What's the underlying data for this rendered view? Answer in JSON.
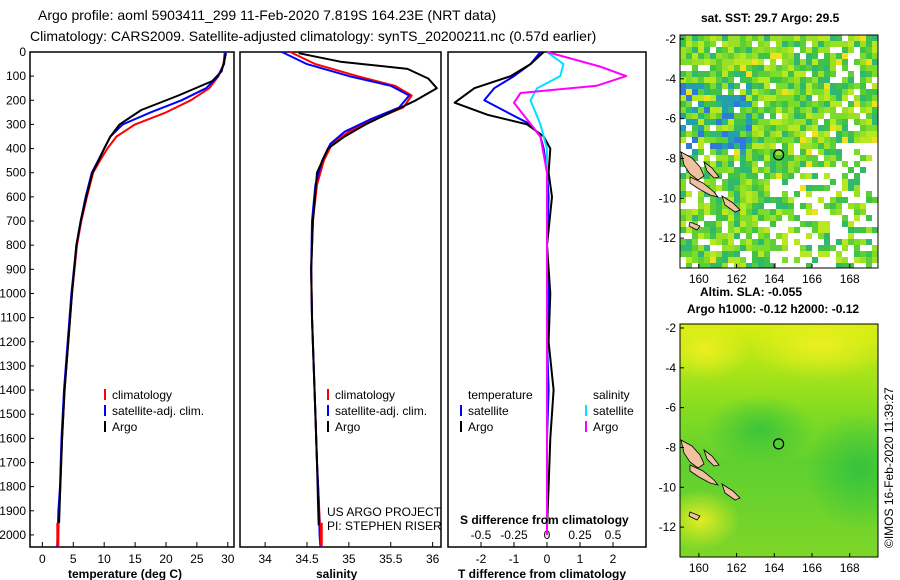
{
  "header": {
    "line1": "Argo profile: aoml 5903411_299 11-Feb-2020 7.819S 164.23E (NRT data)",
    "line2": "Climatology: CARS2009. Satellite-adjusted climatology: synTS_20200211.nc (0.57d earlier)"
  },
  "colors": {
    "climatology": "#ff0000",
    "satellite": "#0000ff",
    "argo": "#000000",
    "sat_salinity": "#00e0ff",
    "argo_salinity": "#ff00ff"
  },
  "chart_data": [
    {
      "type": "line",
      "panel": "temperature",
      "xlabel": "temperature (deg C)",
      "ylabel": "",
      "xlim": [
        -2,
        31
      ],
      "ylim": [
        2050,
        0
      ],
      "xticks": [
        0,
        5,
        10,
        15,
        20,
        25,
        30
      ],
      "yticks": [
        0,
        100,
        200,
        300,
        400,
        500,
        600,
        700,
        800,
        900,
        1000,
        1100,
        1200,
        1300,
        1400,
        1500,
        1600,
        1700,
        1800,
        1900,
        2000
      ],
      "legend": [
        "climatology",
        "satellite-adj. clim.",
        "Argo"
      ],
      "series": [
        {
          "name": "climatology",
          "color": "#ff0000",
          "x": [
            29.5,
            29.3,
            28.5,
            27,
            24,
            20,
            15,
            12,
            10.5,
            9.3,
            8.2,
            7.2,
            6.3,
            5.6,
            4.8,
            4.2,
            3.6,
            3.2,
            2.9,
            2.7,
            2.5
          ],
          "y": [
            0,
            50,
            100,
            150,
            200,
            250,
            300,
            350,
            400,
            450,
            500,
            600,
            700,
            800,
            1000,
            1200,
            1400,
            1600,
            1800,
            1900,
            2050
          ]
        },
        {
          "name": "satellite-adj. clim.",
          "color": "#0000ff",
          "x": [
            29.6,
            29.4,
            28.4,
            26.5,
            22.5,
            17.5,
            13,
            11,
            10,
            9,
            8,
            7,
            6.2,
            5.5,
            4.7,
            4.1,
            3.5,
            3.1,
            2.85,
            2.6,
            2.4
          ],
          "y": [
            0,
            50,
            100,
            150,
            200,
            250,
            300,
            350,
            400,
            450,
            500,
            600,
            700,
            800,
            1000,
            1200,
            1400,
            1600,
            1800,
            1900,
            2050
          ]
        },
        {
          "name": "Argo",
          "color": "#000000",
          "x": [
            29.7,
            29.5,
            29,
            27.5,
            22,
            16,
            12.5,
            11,
            10,
            9.1,
            8.1,
            7.1,
            6.2,
            5.5,
            4.8,
            4.2,
            3.6,
            3.2,
            2.9,
            2.7
          ],
          "y": [
            5,
            30,
            80,
            120,
            180,
            240,
            300,
            350,
            400,
            450,
            500,
            600,
            700,
            800,
            1000,
            1200,
            1400,
            1600,
            1800,
            1950
          ]
        }
      ]
    },
    {
      "type": "line",
      "panel": "salinity",
      "xlabel": "salinity",
      "xlim": [
        33.7,
        36.1
      ],
      "ylim": [
        2050,
        0
      ],
      "xticks": [
        34,
        34.5,
        35,
        35.5,
        36
      ],
      "legend": [
        "climatology",
        "satellite-adj. clim.",
        "Argo"
      ],
      "annotation": [
        "US ARGO PROJECT",
        "PI: STEPHEN RISER"
      ],
      "series": [
        {
          "name": "climatology",
          "color": "#ff0000",
          "x": [
            34.3,
            34.6,
            35.1,
            35.55,
            35.75,
            35.65,
            35.3,
            35.0,
            34.8,
            34.7,
            34.62,
            34.57,
            34.55,
            34.56,
            34.58,
            34.6,
            34.62,
            34.64,
            34.66,
            34.67
          ],
          "y": [
            0,
            50,
            100,
            140,
            180,
            230,
            280,
            330,
            380,
            450,
            550,
            700,
            900,
            1100,
            1300,
            1500,
            1700,
            1850,
            2000,
            2050
          ]
        },
        {
          "name": "satellite-adj. clim.",
          "color": "#0000ff",
          "x": [
            34.2,
            34.5,
            35.0,
            35.5,
            35.72,
            35.6,
            35.25,
            34.95,
            34.78,
            34.68,
            34.6,
            34.56,
            34.55,
            34.56,
            34.58,
            34.6,
            34.62,
            34.64,
            34.65,
            34.66
          ],
          "y": [
            0,
            50,
            100,
            140,
            180,
            230,
            280,
            330,
            380,
            450,
            550,
            700,
            900,
            1100,
            1300,
            1500,
            1700,
            1850,
            2000,
            2050
          ]
        },
        {
          "name": "Argo",
          "color": "#000000",
          "x": [
            34.4,
            34.9,
            35.7,
            35.95,
            36.05,
            35.8,
            35.5,
            35.2,
            34.95,
            34.75,
            34.62,
            34.57,
            34.55,
            34.56,
            34.58,
            34.6,
            34.62,
            34.63,
            34.64
          ],
          "y": [
            5,
            40,
            70,
            110,
            150,
            200,
            250,
            300,
            350,
            400,
            500,
            700,
            900,
            1100,
            1300,
            1500,
            1700,
            1850,
            1960
          ]
        }
      ]
    },
    {
      "type": "line",
      "panel": "difference",
      "xlabel": "T difference from climatology",
      "secondary_xlabel": "S difference from climatology",
      "xlim": [
        -3,
        3
      ],
      "ylim": [
        2050,
        0
      ],
      "xticks": [
        -2,
        -1,
        0,
        1,
        2
      ],
      "secondary_xticks": [
        -0.5,
        -0.25,
        0,
        0.25,
        0.5
      ],
      "legend_left": [
        "temperature",
        "satellite",
        "Argo"
      ],
      "legend_right": [
        "salinity",
        "satellite",
        "Argo"
      ],
      "series": [
        {
          "name": "T satellite",
          "color": "#0000ff",
          "x": [
            -0.2,
            -0.5,
            -1.0,
            -1.6,
            -1.9,
            -1.2,
            -0.5,
            -0.2,
            -0.1,
            0,
            0.05,
            0,
            0.05,
            0,
            0.05,
            0,
            0,
            0
          ],
          "y": [
            0,
            50,
            100,
            150,
            200,
            250,
            300,
            350,
            400,
            500,
            600,
            800,
            1000,
            1200,
            1400,
            1600,
            1800,
            2000
          ]
        },
        {
          "name": "T Argo",
          "color": "#000000",
          "x": [
            -0.1,
            -0.5,
            -1.1,
            -2.2,
            -2.8,
            -1.8,
            -0.6,
            -0.1,
            0.1,
            0.05,
            0.15,
            0,
            0.1,
            0.05,
            0.2,
            0.1,
            0.05,
            0
          ],
          "y": [
            0,
            50,
            100,
            150,
            210,
            260,
            300,
            350,
            400,
            500,
            600,
            800,
            1000,
            1200,
            1400,
            1600,
            1800,
            1970
          ]
        },
        {
          "name": "S satellite",
          "color": "#00e0ff",
          "x": [
            0.0,
            0.5,
            0.4,
            -0.3,
            -0.5,
            -0.2,
            0,
            0
          ],
          "y": [
            0,
            50,
            100,
            150,
            200,
            300,
            400,
            2000
          ]
        },
        {
          "name": "S Argo",
          "color": "#ff00ff",
          "x": [
            0.0,
            1.6,
            2.4,
            1.5,
            -0.8,
            -1.0,
            -0.2,
            0,
            0
          ],
          "y": [
            0,
            60,
            100,
            140,
            170,
            210,
            350,
            500,
            2000
          ]
        }
      ]
    },
    {
      "type": "heatmap",
      "panel": "sat-sst-map",
      "title": "sat. SST: 29.7 Argo: 29.5",
      "xticks": [
        160,
        162,
        164,
        166,
        168
      ],
      "yticks": [
        -2,
        -4,
        -6,
        -8,
        -10,
        -12
      ],
      "xlim": [
        159,
        169.5
      ],
      "ylim": [
        -13.5,
        -1.8
      ],
      "argo_marker": [
        164.23,
        -7.819
      ]
    },
    {
      "type": "heatmap",
      "panel": "altimetry-map",
      "title": "Altim. SLA: -0.055",
      "subtitle": "Argo h1000: -0.12 h2000: -0.12",
      "xticks": [
        160,
        162,
        164,
        166,
        168
      ],
      "yticks": [
        -2,
        -4,
        -6,
        -8,
        -10,
        -12
      ],
      "xlim": [
        159,
        169.5
      ],
      "ylim": [
        -13.5,
        -1.8
      ],
      "argo_marker": [
        164.23,
        -7.819
      ]
    }
  ],
  "credit": "©IMOS 16-Feb-2020 11:39:27"
}
